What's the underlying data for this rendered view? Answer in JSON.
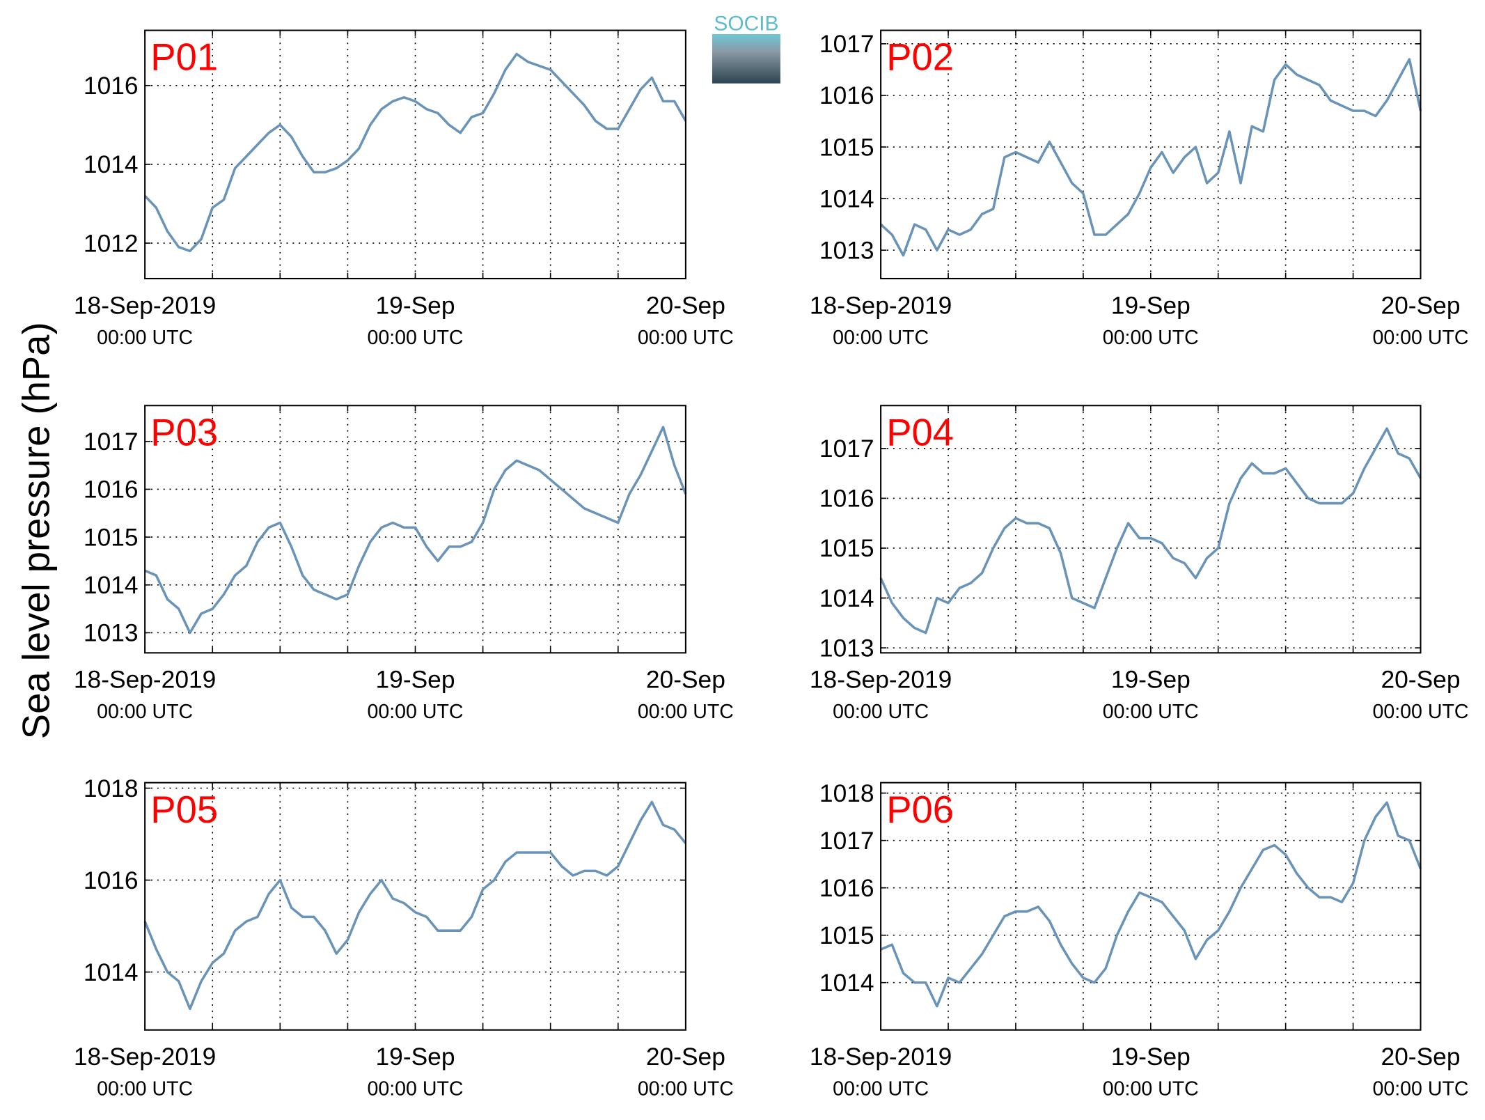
{
  "ylabel": "Sea level pressure (hPa)",
  "logo_text": "SOCIB",
  "chart_data": [
    {
      "type": "line",
      "title": "P01",
      "xlim": [
        0,
        48
      ],
      "ylim": [
        1011.1,
        1017.4
      ],
      "yticks": [
        1012,
        1014,
        1016
      ],
      "xticks": [
        {
          "value": 0,
          "label": [
            "18-Sep-2019",
            "00:00 UTC"
          ]
        },
        {
          "value": 6,
          "label": null
        },
        {
          "value": 12,
          "label": null
        },
        {
          "value": 18,
          "label": null
        },
        {
          "value": 24,
          "label": [
            "19-Sep",
            "00:00 UTC"
          ]
        },
        {
          "value": 30,
          "label": null
        },
        {
          "value": 36,
          "label": null
        },
        {
          "value": 42,
          "label": null
        },
        {
          "value": 48,
          "label": [
            "20-Sep",
            "00:00 UTC"
          ]
        }
      ],
      "grid": true,
      "x": [
        0,
        1,
        2,
        3,
        4,
        5,
        6,
        7,
        8,
        9,
        10,
        11,
        12,
        13,
        14,
        15,
        16,
        17,
        18,
        19,
        20,
        21,
        22,
        23,
        24,
        25,
        26,
        27,
        28,
        29,
        30,
        31,
        32,
        33,
        34,
        35,
        36,
        37,
        38,
        39,
        40,
        41,
        42,
        43,
        44,
        45,
        46,
        47,
        48
      ],
      "series": [
        {
          "color": "#6a93b8",
          "values": [
            1013.2,
            1012.9,
            1012.3,
            1011.9,
            1011.8,
            1012.1,
            1012.9,
            1013.1,
            1013.9,
            1014.2,
            1014.5,
            1014.8,
            1015.0,
            1014.7,
            1014.2,
            1013.8,
            1013.8,
            1013.9,
            1014.1,
            1014.4,
            1015.0,
            1015.4,
            1015.6,
            1015.7,
            1015.6,
            1015.4,
            1015.3,
            1015.0,
            1014.8,
            1015.2,
            1015.3,
            1015.8,
            1016.4,
            1016.8,
            1016.6,
            1016.5,
            1016.4,
            1016.1,
            1015.8,
            1015.5,
            1015.1,
            1014.9,
            1014.9,
            1015.4,
            1015.9,
            1016.2,
            1015.6,
            1015.6,
            1015.1
          ]
        }
      ]
    },
    {
      "type": "line",
      "title": "P02",
      "xlim": [
        0,
        48
      ],
      "ylim": [
        1012.45,
        1017.26
      ],
      "yticks": [
        1013,
        1014,
        1015,
        1016,
        1017
      ],
      "xticks": [
        {
          "value": 0,
          "label": [
            "18-Sep-2019",
            "00:00 UTC"
          ]
        },
        {
          "value": 6,
          "label": null
        },
        {
          "value": 12,
          "label": null
        },
        {
          "value": 18,
          "label": null
        },
        {
          "value": 24,
          "label": [
            "19-Sep",
            "00:00 UTC"
          ]
        },
        {
          "value": 30,
          "label": null
        },
        {
          "value": 36,
          "label": null
        },
        {
          "value": 42,
          "label": null
        },
        {
          "value": 48,
          "label": [
            "20-Sep",
            "00:00 UTC"
          ]
        }
      ],
      "grid": true,
      "x": [
        0,
        1,
        2,
        3,
        4,
        5,
        6,
        7,
        8,
        9,
        10,
        11,
        12,
        13,
        14,
        15,
        16,
        17,
        18,
        19,
        20,
        21,
        22,
        23,
        24,
        25,
        26,
        27,
        28,
        29,
        30,
        31,
        32,
        33,
        34,
        35,
        36,
        37,
        38,
        39,
        40,
        41,
        42,
        43,
        44,
        45,
        46,
        47,
        48
      ],
      "series": [
        {
          "color": "#6a93b8",
          "values": [
            1013.5,
            1013.3,
            1012.9,
            1013.5,
            1013.4,
            1013.0,
            1013.4,
            1013.3,
            1013.4,
            1013.7,
            1013.8,
            1014.8,
            1014.9,
            1014.8,
            1014.7,
            1015.1,
            1014.7,
            1014.3,
            1014.1,
            1013.3,
            1013.3,
            1013.5,
            1013.7,
            1014.1,
            1014.6,
            1014.9,
            1014.5,
            1014.8,
            1015.0,
            1014.3,
            1014.5,
            1015.3,
            1014.3,
            1015.4,
            1015.3,
            1016.3,
            1016.6,
            1016.4,
            1016.3,
            1016.2,
            1015.9,
            1015.8,
            1015.7,
            1015.7,
            1015.6,
            1015.9,
            1016.3,
            1016.7,
            1015.7
          ]
        }
      ]
    },
    {
      "type": "line",
      "title": "P03",
      "xlim": [
        0,
        48
      ],
      "ylim": [
        1012.58,
        1017.75
      ],
      "yticks": [
        1013,
        1014,
        1015,
        1016,
        1017
      ],
      "xticks": [
        {
          "value": 0,
          "label": [
            "18-Sep-2019",
            "00:00 UTC"
          ]
        },
        {
          "value": 6,
          "label": null
        },
        {
          "value": 12,
          "label": null
        },
        {
          "value": 18,
          "label": null
        },
        {
          "value": 24,
          "label": [
            "19-Sep",
            "00:00 UTC"
          ]
        },
        {
          "value": 30,
          "label": null
        },
        {
          "value": 36,
          "label": null
        },
        {
          "value": 42,
          "label": null
        },
        {
          "value": 48,
          "label": [
            "20-Sep",
            "00:00 UTC"
          ]
        }
      ],
      "grid": true,
      "x": [
        0,
        1,
        2,
        3,
        4,
        5,
        6,
        7,
        8,
        9,
        10,
        11,
        12,
        13,
        14,
        15,
        16,
        17,
        18,
        19,
        20,
        21,
        22,
        23,
        24,
        25,
        26,
        27,
        28,
        29,
        30,
        31,
        32,
        33,
        34,
        35,
        36,
        37,
        38,
        39,
        40,
        41,
        42,
        43,
        44,
        45,
        46,
        47,
        48
      ],
      "series": [
        {
          "color": "#6a93b8",
          "values": [
            1014.3,
            1014.2,
            1013.7,
            1013.5,
            1013.0,
            1013.4,
            1013.5,
            1013.8,
            1014.2,
            1014.4,
            1014.9,
            1015.2,
            1015.3,
            1014.8,
            1014.2,
            1013.9,
            1013.8,
            1013.7,
            1013.8,
            1014.4,
            1014.9,
            1015.2,
            1015.3,
            1015.2,
            1015.2,
            1014.8,
            1014.5,
            1014.8,
            1014.8,
            1014.9,
            1015.3,
            1016.0,
            1016.4,
            1016.6,
            1016.5,
            1016.4,
            1016.2,
            1016.0,
            1015.8,
            1015.6,
            1015.5,
            1015.4,
            1015.3,
            1015.9,
            1016.3,
            1016.8,
            1017.3,
            1016.5,
            1015.9
          ]
        }
      ]
    },
    {
      "type": "line",
      "title": "P04",
      "xlim": [
        0,
        48
      ],
      "ylim": [
        1012.9,
        1017.86
      ],
      "yticks": [
        1013,
        1014,
        1015,
        1016,
        1017
      ],
      "xticks": [
        {
          "value": 0,
          "label": [
            "18-Sep-2019",
            "00:00 UTC"
          ]
        },
        {
          "value": 6,
          "label": null
        },
        {
          "value": 12,
          "label": null
        },
        {
          "value": 18,
          "label": null
        },
        {
          "value": 24,
          "label": [
            "19-Sep",
            "00:00 UTC"
          ]
        },
        {
          "value": 30,
          "label": null
        },
        {
          "value": 36,
          "label": null
        },
        {
          "value": 42,
          "label": null
        },
        {
          "value": 48,
          "label": [
            "20-Sep",
            "00:00 UTC"
          ]
        }
      ],
      "grid": true,
      "x": [
        0,
        1,
        2,
        3,
        4,
        5,
        6,
        7,
        8,
        9,
        10,
        11,
        12,
        13,
        14,
        15,
        16,
        17,
        18,
        19,
        20,
        21,
        22,
        23,
        24,
        25,
        26,
        27,
        28,
        29,
        30,
        31,
        32,
        33,
        34,
        35,
        36,
        37,
        38,
        39,
        40,
        41,
        42,
        43,
        44,
        45,
        46,
        47,
        48
      ],
      "series": [
        {
          "color": "#6a93b8",
          "values": [
            1014.4,
            1013.9,
            1013.6,
            1013.4,
            1013.3,
            1014.0,
            1013.9,
            1014.2,
            1014.3,
            1014.5,
            1015.0,
            1015.4,
            1015.6,
            1015.5,
            1015.5,
            1015.4,
            1014.9,
            1014.0,
            1013.9,
            1013.8,
            1014.4,
            1015.0,
            1015.5,
            1015.2,
            1015.2,
            1015.1,
            1014.8,
            1014.7,
            1014.4,
            1014.8,
            1015.0,
            1015.9,
            1016.4,
            1016.7,
            1016.5,
            1016.5,
            1016.6,
            1016.3,
            1016.0,
            1015.9,
            1015.9,
            1015.9,
            1016.1,
            1016.6,
            1017.0,
            1017.4,
            1016.9,
            1016.8,
            1016.4
          ]
        }
      ]
    },
    {
      "type": "line",
      "title": "P05",
      "xlim": [
        0,
        48
      ],
      "ylim": [
        1012.74,
        1018.12
      ],
      "yticks": [
        1014,
        1016,
        1018
      ],
      "xticks": [
        {
          "value": 0,
          "label": [
            "18-Sep-2019",
            "00:00 UTC"
          ]
        },
        {
          "value": 6,
          "label": null
        },
        {
          "value": 12,
          "label": null
        },
        {
          "value": 18,
          "label": null
        },
        {
          "value": 24,
          "label": [
            "19-Sep",
            "00:00 UTC"
          ]
        },
        {
          "value": 30,
          "label": null
        },
        {
          "value": 36,
          "label": null
        },
        {
          "value": 42,
          "label": null
        },
        {
          "value": 48,
          "label": [
            "20-Sep",
            "00:00 UTC"
          ]
        }
      ],
      "grid": true,
      "x": [
        0,
        1,
        2,
        3,
        4,
        5,
        6,
        7,
        8,
        9,
        10,
        11,
        12,
        13,
        14,
        15,
        16,
        17,
        18,
        19,
        20,
        21,
        22,
        23,
        24,
        25,
        26,
        27,
        28,
        29,
        30,
        31,
        32,
        33,
        34,
        35,
        36,
        37,
        38,
        39,
        40,
        41,
        42,
        43,
        44,
        45,
        46,
        47,
        48
      ],
      "series": [
        {
          "color": "#6a93b8",
          "values": [
            1015.1,
            1014.5,
            1014.0,
            1013.8,
            1013.2,
            1013.8,
            1014.2,
            1014.4,
            1014.9,
            1015.1,
            1015.2,
            1015.7,
            1016.0,
            1015.4,
            1015.2,
            1015.2,
            1014.9,
            1014.4,
            1014.7,
            1015.3,
            1015.7,
            1016.0,
            1015.6,
            1015.5,
            1015.3,
            1015.2,
            1014.9,
            1014.9,
            1014.9,
            1015.2,
            1015.8,
            1016.0,
            1016.4,
            1016.6,
            1016.6,
            1016.6,
            1016.6,
            1016.3,
            1016.1,
            1016.2,
            1016.2,
            1016.1,
            1016.3,
            1016.8,
            1017.3,
            1017.7,
            1017.2,
            1017.1,
            1016.8
          ]
        }
      ]
    },
    {
      "type": "line",
      "title": "P06",
      "xlim": [
        0,
        48
      ],
      "ylim": [
        1013.0,
        1018.22
      ],
      "yticks": [
        1014,
        1015,
        1016,
        1017,
        1018
      ],
      "xticks": [
        {
          "value": 0,
          "label": [
            "18-Sep-2019",
            "00:00 UTC"
          ]
        },
        {
          "value": 6,
          "label": null
        },
        {
          "value": 12,
          "label": null
        },
        {
          "value": 18,
          "label": null
        },
        {
          "value": 24,
          "label": [
            "19-Sep",
            "00:00 UTC"
          ]
        },
        {
          "value": 30,
          "label": null
        },
        {
          "value": 36,
          "label": null
        },
        {
          "value": 42,
          "label": null
        },
        {
          "value": 48,
          "label": [
            "20-Sep",
            "00:00 UTC"
          ]
        }
      ],
      "grid": true,
      "x": [
        0,
        1,
        2,
        3,
        4,
        5,
        6,
        7,
        8,
        9,
        10,
        11,
        12,
        13,
        14,
        15,
        16,
        17,
        18,
        19,
        20,
        21,
        22,
        23,
        24,
        25,
        26,
        27,
        28,
        29,
        30,
        31,
        32,
        33,
        34,
        35,
        36,
        37,
        38,
        39,
        40,
        41,
        42,
        43,
        44,
        45,
        46,
        47,
        48
      ],
      "series": [
        {
          "color": "#6a93b8",
          "values": [
            1014.7,
            1014.8,
            1014.2,
            1014.0,
            1014.0,
            1013.5,
            1014.1,
            1014.0,
            1014.3,
            1014.6,
            1015.0,
            1015.4,
            1015.5,
            1015.5,
            1015.6,
            1015.3,
            1014.8,
            1014.4,
            1014.1,
            1014.0,
            1014.3,
            1015.0,
            1015.5,
            1015.9,
            1015.8,
            1015.7,
            1015.4,
            1015.1,
            1014.5,
            1014.9,
            1015.1,
            1015.5,
            1016.0,
            1016.4,
            1016.8,
            1016.9,
            1016.7,
            1016.3,
            1016.0,
            1015.8,
            1015.8,
            1015.7,
            1016.1,
            1017.0,
            1017.5,
            1017.8,
            1017.1,
            1017.0,
            1016.4
          ]
        }
      ]
    }
  ]
}
